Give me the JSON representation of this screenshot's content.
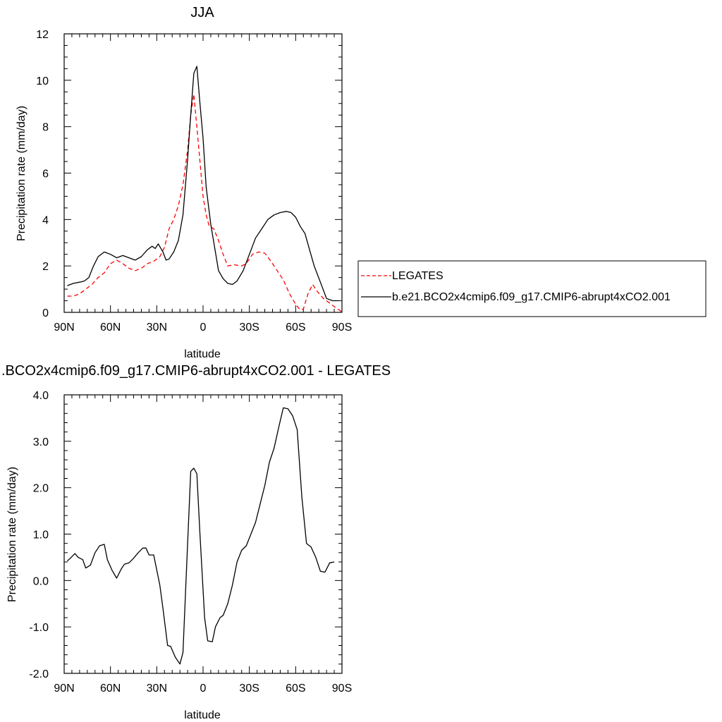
{
  "chart_data": [
    {
      "type": "line",
      "title": "JJA",
      "xlabel": "latitude",
      "ylabel": "Precipitation rate (mm/day)",
      "xlim": [
        90,
        -90
      ],
      "ylim": [
        0,
        12
      ],
      "xticks": [
        90,
        60,
        30,
        0,
        -30,
        -60,
        -90
      ],
      "xtick_labels": [
        "90N",
        "60N",
        "30N",
        "0",
        "30S",
        "60S",
        "90S"
      ],
      "yticks": [
        0,
        2,
        4,
        6,
        8,
        10,
        12
      ],
      "ytick_labels": [
        "0",
        "2",
        "4",
        "6",
        "8",
        "10",
        "12"
      ],
      "legend_position": "right",
      "series": [
        {
          "name": "LEGATES",
          "color": "#ff0000",
          "dash": "dashed",
          "points": [
            [
              88,
              0.7
            ],
            [
              84,
              0.7
            ],
            [
              80,
              0.8
            ],
            [
              76,
              1.0
            ],
            [
              72,
              1.2
            ],
            [
              68,
              1.5
            ],
            [
              64,
              1.7
            ],
            [
              60,
              2.1
            ],
            [
              56,
              2.25
            ],
            [
              52,
              2.1
            ],
            [
              48,
              1.9
            ],
            [
              44,
              1.8
            ],
            [
              40,
              1.9
            ],
            [
              36,
              2.1
            ],
            [
              32,
              2.2
            ],
            [
              28,
              2.4
            ],
            [
              25,
              2.8
            ],
            [
              22,
              3.6
            ],
            [
              19,
              4.0
            ],
            [
              16,
              4.6
            ],
            [
              13,
              5.5
            ],
            [
              10,
              7.0
            ],
            [
              8,
              8.5
            ],
            [
              6,
              9.4
            ],
            [
              4,
              8.0
            ],
            [
              2,
              6.5
            ],
            [
              0,
              5.0
            ],
            [
              -2,
              4.2
            ],
            [
              -4,
              3.7
            ],
            [
              -7,
              3.6
            ],
            [
              -10,
              3.1
            ],
            [
              -13,
              2.5
            ],
            [
              -16,
              2.0
            ],
            [
              -20,
              2.05
            ],
            [
              -25,
              2.0
            ],
            [
              -28,
              2.1
            ],
            [
              -32,
              2.5
            ],
            [
              -36,
              2.6
            ],
            [
              -40,
              2.55
            ],
            [
              -44,
              2.2
            ],
            [
              -48,
              1.8
            ],
            [
              -52,
              1.4
            ],
            [
              -56,
              0.8
            ],
            [
              -60,
              0.35
            ],
            [
              -63,
              0.1
            ],
            [
              -65,
              0.15
            ],
            [
              -68,
              0.8
            ],
            [
              -71,
              1.2
            ],
            [
              -74,
              0.9
            ],
            [
              -78,
              0.6
            ],
            [
              -82,
              0.4
            ],
            [
              -86,
              0.2
            ],
            [
              -90,
              0.02
            ]
          ]
        },
        {
          "name": "b.e21.BCO2x4cmip6.f09_g17.CMIP6-abrupt4xCO2.001",
          "color": "#000000",
          "dash": "solid",
          "points": [
            [
              88,
              1.15
            ],
            [
              84,
              1.25
            ],
            [
              80,
              1.3
            ],
            [
              77,
              1.35
            ],
            [
              74,
              1.5
            ],
            [
              71,
              2.0
            ],
            [
              68,
              2.4
            ],
            [
              64,
              2.6
            ],
            [
              60,
              2.5
            ],
            [
              56,
              2.35
            ],
            [
              52,
              2.45
            ],
            [
              48,
              2.35
            ],
            [
              44,
              2.25
            ],
            [
              40,
              2.4
            ],
            [
              36,
              2.7
            ],
            [
              33,
              2.85
            ],
            [
              31,
              2.75
            ],
            [
              29,
              2.95
            ],
            [
              26,
              2.6
            ],
            [
              24,
              2.25
            ],
            [
              22,
              2.3
            ],
            [
              19,
              2.6
            ],
            [
              16,
              3.1
            ],
            [
              13,
              4.2
            ],
            [
              10,
              6.6
            ],
            [
              8,
              8.5
            ],
            [
              6,
              10.3
            ],
            [
              4,
              10.6
            ],
            [
              2,
              9.0
            ],
            [
              0,
              7.5
            ],
            [
              -2,
              5.4
            ],
            [
              -5,
              3.8
            ],
            [
              -8,
              2.6
            ],
            [
              -10,
              1.8
            ],
            [
              -13,
              1.45
            ],
            [
              -16,
              1.25
            ],
            [
              -19,
              1.2
            ],
            [
              -22,
              1.35
            ],
            [
              -26,
              1.8
            ],
            [
              -30,
              2.5
            ],
            [
              -34,
              3.2
            ],
            [
              -38,
              3.6
            ],
            [
              -42,
              4.0
            ],
            [
              -46,
              4.2
            ],
            [
              -50,
              4.3
            ],
            [
              -54,
              4.35
            ],
            [
              -57,
              4.3
            ],
            [
              -60,
              4.1
            ],
            [
              -63,
              3.7
            ],
            [
              -66,
              3.4
            ],
            [
              -69,
              2.7
            ],
            [
              -72,
              2.0
            ],
            [
              -76,
              1.3
            ],
            [
              -80,
              0.6
            ],
            [
              -84,
              0.5
            ],
            [
              -88,
              0.5
            ]
          ]
        }
      ]
    },
    {
      "type": "line",
      "title": ".BCO2x4cmip6.f09_g17.CMIP6-abrupt4xCO2.001 - LEGATES",
      "xlabel": "latitude",
      "ylabel": "Precipitation rate (mm/day)",
      "xlim": [
        90,
        -90
      ],
      "ylim": [
        -2,
        4
      ],
      "xticks": [
        90,
        60,
        30,
        0,
        -30,
        -60,
        -90
      ],
      "xtick_labels": [
        "90N",
        "60N",
        "30N",
        "0",
        "30S",
        "60S",
        "90S"
      ],
      "yticks": [
        -2,
        -1,
        0,
        1,
        2,
        3,
        4
      ],
      "ytick_labels": [
        "-2.0",
        "-1.0",
        "0.0",
        "1.0",
        "2.0",
        "3.0",
        "4.0"
      ],
      "series": [
        {
          "color": "#000000",
          "dash": "solid",
          "points": [
            [
              88,
              0.42
            ],
            [
              86,
              0.48
            ],
            [
              83,
              0.58
            ],
            [
              81,
              0.5
            ],
            [
              78,
              0.45
            ],
            [
              76,
              0.27
            ],
            [
              73,
              0.33
            ],
            [
              70,
              0.6
            ],
            [
              67,
              0.75
            ],
            [
              64,
              0.78
            ],
            [
              62,
              0.45
            ],
            [
              59,
              0.22
            ],
            [
              56,
              0.05
            ],
            [
              53,
              0.25
            ],
            [
              51,
              0.35
            ],
            [
              48,
              0.38
            ],
            [
              45,
              0.48
            ],
            [
              42,
              0.6
            ],
            [
              39,
              0.7
            ],
            [
              37,
              0.7
            ],
            [
              35,
              0.55
            ],
            [
              32,
              0.55
            ],
            [
              28,
              -0.1
            ],
            [
              26,
              -0.6
            ],
            [
              23,
              -1.4
            ],
            [
              21,
              -1.42
            ],
            [
              18,
              -1.65
            ],
            [
              15,
              -1.8
            ],
            [
              13,
              -1.55
            ],
            [
              10,
              0.8
            ],
            [
              8,
              2.35
            ],
            [
              6,
              2.42
            ],
            [
              4,
              2.3
            ],
            [
              2,
              1.0
            ],
            [
              -1,
              -0.8
            ],
            [
              -3,
              -1.3
            ],
            [
              -6,
              -1.32
            ],
            [
              -8,
              -1.0
            ],
            [
              -11,
              -0.8
            ],
            [
              -13,
              -0.75
            ],
            [
              -16,
              -0.5
            ],
            [
              -19,
              -0.1
            ],
            [
              -22,
              0.4
            ],
            [
              -25,
              0.65
            ],
            [
              -28,
              0.75
            ],
            [
              -31,
              1.0
            ],
            [
              -34,
              1.25
            ],
            [
              -37,
              1.65
            ],
            [
              -40,
              2.05
            ],
            [
              -43,
              2.55
            ],
            [
              -46,
              2.85
            ],
            [
              -49,
              3.3
            ],
            [
              -52,
              3.72
            ],
            [
              -55,
              3.7
            ],
            [
              -58,
              3.55
            ],
            [
              -61,
              3.25
            ],
            [
              -64,
              1.8
            ],
            [
              -67,
              0.8
            ],
            [
              -70,
              0.72
            ],
            [
              -73,
              0.5
            ],
            [
              -76,
              0.2
            ],
            [
              -79,
              0.18
            ],
            [
              -82,
              0.38
            ],
            [
              -85,
              0.4
            ]
          ]
        }
      ]
    }
  ]
}
